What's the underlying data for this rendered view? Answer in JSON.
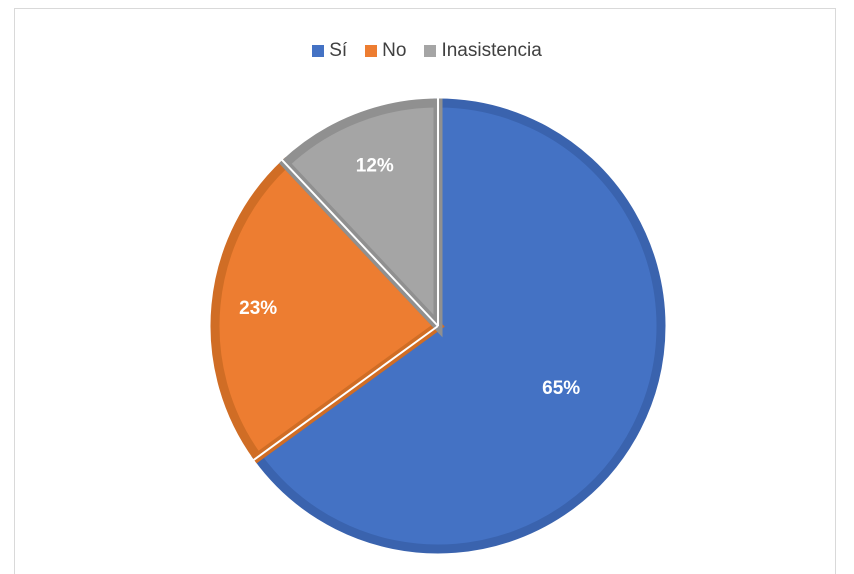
{
  "chart_data": {
    "type": "pie",
    "categories": [
      "Sí",
      "No",
      "Inasistencia"
    ],
    "values": [
      65,
      23,
      12
    ],
    "labels": [
      "65%",
      "23%",
      "12%"
    ],
    "colors": [
      "#4472C4",
      "#ED7D31",
      "#A5A5A5"
    ],
    "border_colors": [
      "#3A63AE",
      "#D06D25",
      "#909090"
    ],
    "legend_position": "top",
    "start_angle": "12 o'clock",
    "direction": "clockwise"
  }
}
